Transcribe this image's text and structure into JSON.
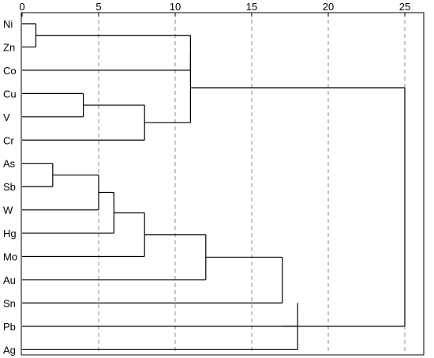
{
  "diagram": {
    "type": "dendrogram",
    "axis": {
      "min": 0,
      "max": 25,
      "ticks": [
        0,
        5,
        10,
        15,
        20,
        25
      ],
      "tick_labels": [
        "0",
        "5",
        "10",
        "15",
        "20",
        "25"
      ]
    },
    "leaves": [
      "Ni",
      "Zn",
      "Co",
      "Cu",
      "V",
      "Cr",
      "As",
      "Sb",
      "W",
      "Hg",
      "Mo",
      "Au",
      "Sn",
      "Pb",
      "Ag"
    ],
    "merges": [
      {
        "id": "m1",
        "a": "Ni",
        "b": "Zn",
        "height": 0.9
      },
      {
        "id": "m2",
        "a": "m1",
        "b": "Co",
        "height": 11.0
      },
      {
        "id": "m3",
        "a": "Cu",
        "b": "V",
        "height": 4.0
      },
      {
        "id": "m4",
        "a": "m3",
        "b": "Cr",
        "height": 8.0
      },
      {
        "id": "m5",
        "a": "m2",
        "b": "m4",
        "height": 11.0
      },
      {
        "id": "m6",
        "a": "As",
        "b": "Sb",
        "height": 2.0
      },
      {
        "id": "m7",
        "a": "m6",
        "b": "W",
        "height": 5.0
      },
      {
        "id": "m8",
        "a": "m7",
        "b": "Hg",
        "height": 6.0
      },
      {
        "id": "m9",
        "a": "m8",
        "b": "Mo",
        "height": 8.0
      },
      {
        "id": "m10",
        "a": "m9",
        "b": "Au",
        "height": 12.0
      },
      {
        "id": "m11",
        "a": "m10",
        "b": "Sn",
        "height": 17.0
      },
      {
        "id": "m12",
        "a": "m11",
        "b": "Pb",
        "height": 18.0
      },
      {
        "id": "m13",
        "a": "m12",
        "b": "Ag",
        "height": 18.0
      },
      {
        "id": "m14",
        "a": "m5",
        "b": "m13",
        "height": 25.0
      }
    ],
    "branch_points": {
      "m12": "Sn",
      "m11": "Pb"
    },
    "gridlines": "dashed",
    "colors": {
      "line": "#000000",
      "grid": "#8c8c8c"
    }
  }
}
